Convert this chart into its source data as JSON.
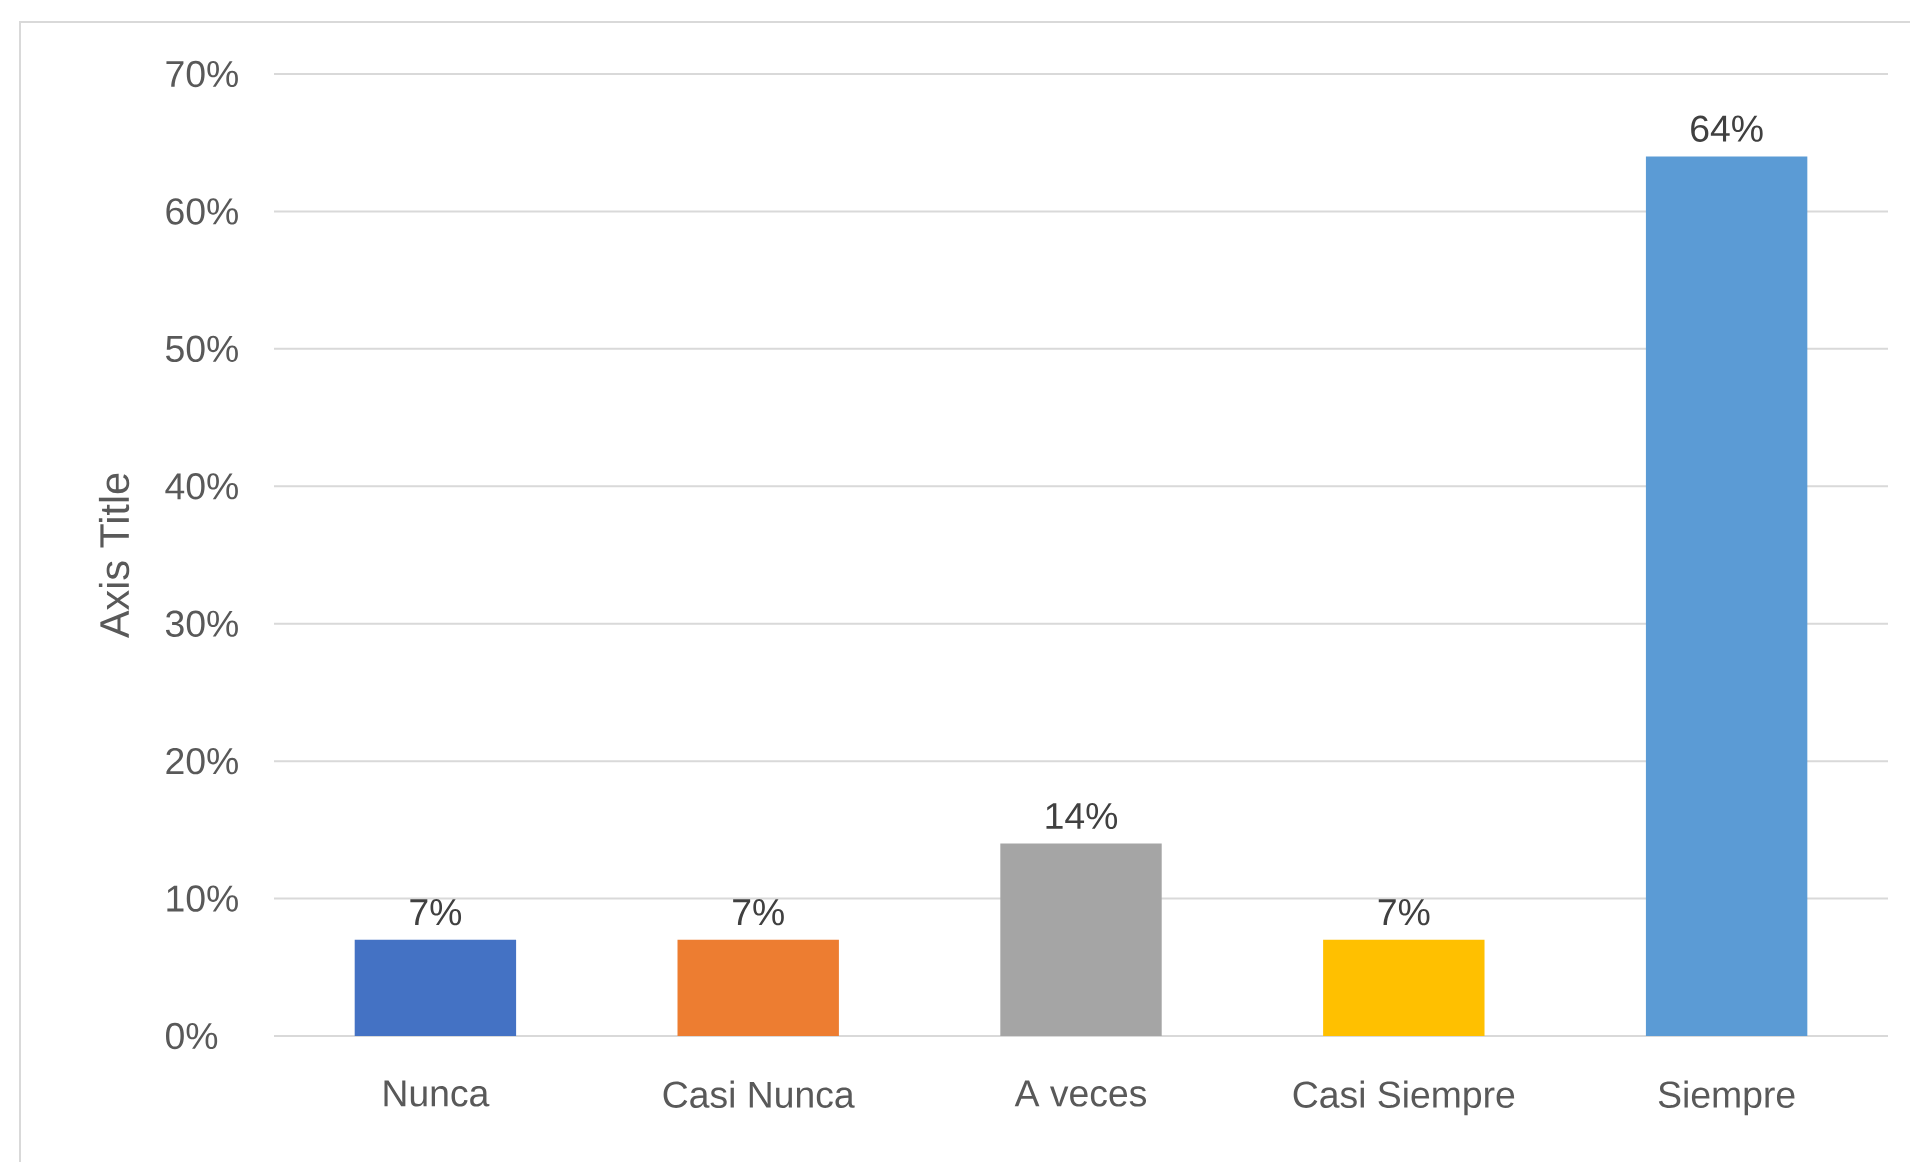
{
  "chart_data": {
    "type": "bar",
    "ylabel": "Axis Title",
    "categories": [
      "Nunca",
      "Casi Nunca",
      "A veces",
      "Casi Siempre",
      "Siempre"
    ],
    "values": [
      7,
      7,
      14,
      7,
      64
    ],
    "colors": [
      "#4472c4",
      "#ed7d31",
      "#a5a5a5",
      "#ffc000",
      "#5b9bd5"
    ],
    "value_labels": [
      "7%",
      "7%",
      "14%",
      "7%",
      "64%"
    ],
    "ylim": [
      0,
      70
    ],
    "yticks": [
      {
        "value": 0,
        "label": "0%"
      },
      {
        "value": 10,
        "label": "10%"
      },
      {
        "value": 20,
        "label": "20%"
      },
      {
        "value": 30,
        "label": "30%"
      },
      {
        "value": 40,
        "label": "40%"
      },
      {
        "value": 50,
        "label": "50%"
      },
      {
        "value": 60,
        "label": "60%"
      },
      {
        "value": 70,
        "label": "70%"
      }
    ],
    "grid": "y"
  }
}
